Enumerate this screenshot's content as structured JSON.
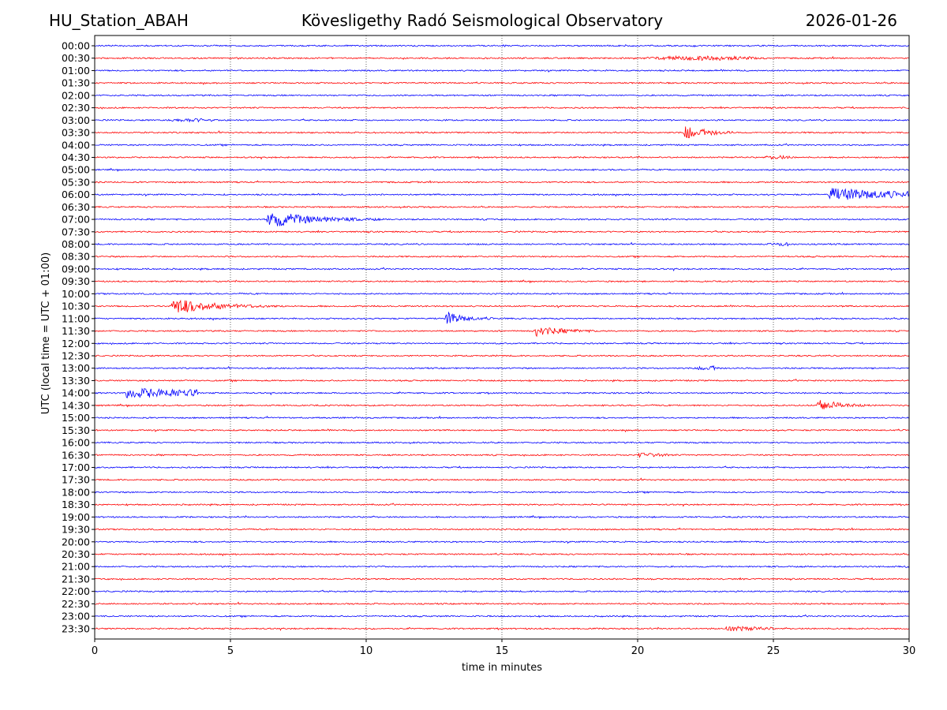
{
  "header": {
    "station": "HU_Station_ABAH",
    "title": "Kövesligethy Radó Seismological Observatory",
    "date": "2026-01-26"
  },
  "chart_data": {
    "type": "line",
    "title": "Kövesligethy Radó Seismological Observatory",
    "xlabel": "time in minutes",
    "ylabel": "UTC (local time = UTC + 01:00)",
    "xlim": [
      0,
      30
    ],
    "x_ticks": [
      0,
      5,
      10,
      15,
      20,
      25,
      30
    ],
    "grid": "vertical dotted at 5-minute intervals",
    "row_interval_minutes": 30,
    "row_labels": [
      "00:00",
      "00:30",
      "01:00",
      "01:30",
      "02:00",
      "02:30",
      "03:00",
      "03:30",
      "04:00",
      "04:30",
      "05:00",
      "05:30",
      "06:00",
      "06:30",
      "07:00",
      "07:30",
      "08:00",
      "08:30",
      "09:00",
      "09:30",
      "10:00",
      "10:30",
      "11:00",
      "11:30",
      "12:00",
      "12:30",
      "13:00",
      "13:30",
      "14:00",
      "14:30",
      "15:00",
      "15:30",
      "16:00",
      "16:30",
      "17:00",
      "17:30",
      "18:00",
      "18:30",
      "19:00",
      "19:30",
      "20:00",
      "20:30",
      "21:00",
      "21:30",
      "22:00",
      "22:30",
      "23:00",
      "23:30"
    ],
    "trace_colors": [
      "#0000ff",
      "#ff0000"
    ],
    "noise_amplitude": 1.0,
    "events": [
      {
        "row": "00:30",
        "start": 20.0,
        "end": 24.9,
        "amplitude": 2.0,
        "decay": 0.0
      },
      {
        "row": "03:00",
        "start": 2.6,
        "end": 4.6,
        "amplitude": 1.5,
        "decay": 0.0
      },
      {
        "row": "03:30",
        "start": 21.7,
        "end": 23.5,
        "amplitude": 9.0,
        "decay": 0.6
      },
      {
        "row": "04:30",
        "start": 24.6,
        "end": 25.8,
        "amplitude": 1.6,
        "decay": 0.0
      },
      {
        "row": "06:00",
        "start": 27.0,
        "end": 30.0,
        "amplitude": 8.0,
        "decay": 0.25
      },
      {
        "row": "07:00",
        "start": 6.3,
        "end": 10.5,
        "amplitude": 11.0,
        "decay": 0.7
      },
      {
        "row": "08:00",
        "start": 24.8,
        "end": 25.8,
        "amplitude": 1.5,
        "decay": 0.0
      },
      {
        "row": "10:30",
        "start": 2.8,
        "end": 7.0,
        "amplitude": 11.0,
        "decay": 0.8
      },
      {
        "row": "11:00",
        "start": 12.9,
        "end": 15.0,
        "amplitude": 9.0,
        "decay": 0.9
      },
      {
        "row": "11:30",
        "start": 16.2,
        "end": 18.5,
        "amplitude": 7.0,
        "decay": 0.7
      },
      {
        "row": "13:00",
        "start": 22.1,
        "end": 23.1,
        "amplitude": 2.5,
        "decay": 0.0
      },
      {
        "row": "14:00",
        "start": 1.1,
        "end": 3.8,
        "amplitude": 6.0,
        "decay": 0.15
      },
      {
        "row": "14:30",
        "start": 26.6,
        "end": 28.6,
        "amplitude": 8.0,
        "decay": 0.7
      },
      {
        "row": "16:30",
        "start": 20.0,
        "end": 21.2,
        "amplitude": 2.5,
        "decay": 0.3
      },
      {
        "row": "23:30",
        "start": 23.2,
        "end": 25.0,
        "amplitude": 3.0,
        "decay": 0.3
      }
    ]
  }
}
